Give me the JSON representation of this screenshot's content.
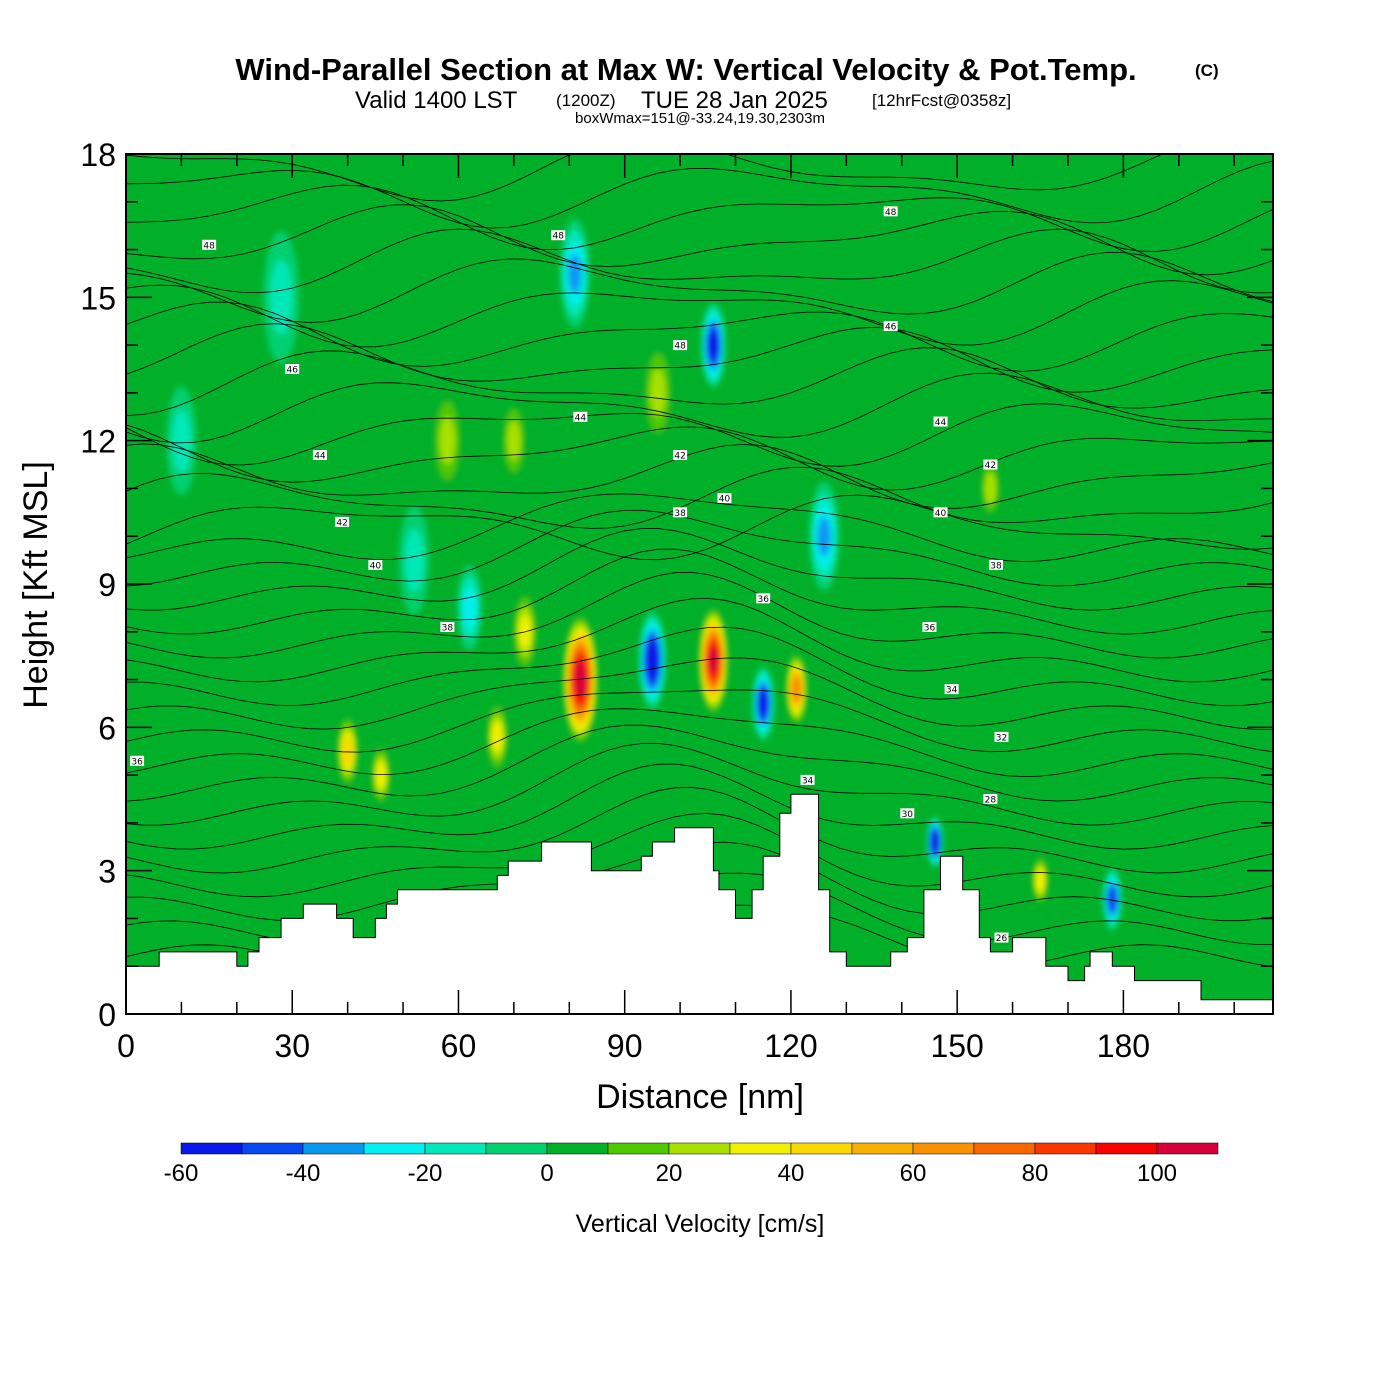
{
  "header": {
    "title": "Wind-Parallel Section at Max W: Vertical Velocity & Pot.Temp.",
    "copyright": "(C)",
    "valid_prefix": "Valid 1400 LST",
    "valid_utc": "(1200Z)",
    "valid_date": "TUE 28 Jan 2025",
    "forecast": "[12hrFcst@0358z]",
    "boxwmax": "boxWmax=151@-33.24,19.30,2303m"
  },
  "chart_data": {
    "type": "heatmap",
    "title": "Wind-Parallel Section at Max W: Vertical Velocity & Pot.Temp.",
    "xlabel": "Distance [nm]",
    "ylabel": "Height [Kft MSL]",
    "xlim": [
      0,
      207
    ],
    "ylim": [
      0,
      18
    ],
    "xticks": [
      0,
      30,
      60,
      90,
      120,
      150,
      180
    ],
    "yticks": [
      0,
      3,
      6,
      9,
      12,
      15,
      18
    ],
    "terrain": {
      "x": [
        0,
        6,
        6,
        20,
        20,
        22,
        22,
        24,
        24,
        28,
        28,
        32,
        32,
        36,
        36,
        38,
        38,
        41,
        41,
        45,
        45,
        47,
        47,
        49,
        49,
        62,
        62,
        64,
        64,
        67,
        67,
        69,
        69,
        75,
        75,
        78,
        78,
        84,
        84,
        90,
        90,
        93,
        93,
        95,
        95,
        99,
        99,
        104,
        104,
        106,
        106,
        107,
        107,
        110,
        110,
        113,
        113,
        115,
        115,
        118,
        118,
        120,
        120,
        125,
        125,
        127,
        127,
        130,
        130,
        138,
        138,
        141,
        141,
        144,
        144,
        147,
        147,
        151,
        151,
        154,
        154,
        156,
        156,
        160,
        160,
        166,
        166,
        170,
        170,
        173,
        173,
        174,
        174,
        178,
        178,
        182,
        182,
        185,
        185,
        194,
        194,
        207
      ],
      "height_kft": [
        1.0,
        1.0,
        1.3,
        1.3,
        1.0,
        1.0,
        1.3,
        1.3,
        1.6,
        1.6,
        2.0,
        2.0,
        2.3,
        2.3,
        2.3,
        2.3,
        2.0,
        2.0,
        1.6,
        1.6,
        2.0,
        2.0,
        2.3,
        2.3,
        2.6,
        2.6,
        2.6,
        2.6,
        2.6,
        2.6,
        2.9,
        2.9,
        3.2,
        3.2,
        3.6,
        3.6,
        3.6,
        3.6,
        3.0,
        3.0,
        3.0,
        3.0,
        3.3,
        3.3,
        3.6,
        3.6,
        3.9,
        3.9,
        3.9,
        3.9,
        3.0,
        3.0,
        2.6,
        2.6,
        2.0,
        2.0,
        2.6,
        2.6,
        3.3,
        3.3,
        4.2,
        4.2,
        4.6,
        4.6,
        2.6,
        2.6,
        1.3,
        1.3,
        1.0,
        1.0,
        1.3,
        1.3,
        1.6,
        1.6,
        2.6,
        2.6,
        3.3,
        3.3,
        2.6,
        2.6,
        1.6,
        1.6,
        1.3,
        1.3,
        1.6,
        1.6,
        1.0,
        1.0,
        0.7,
        0.7,
        1.0,
        1.0,
        1.3,
        1.3,
        1.0,
        1.0,
        0.7,
        0.7,
        0.7,
        0.7,
        0.3,
        0.3
      ]
    },
    "vertical_velocity_cells": [
      {
        "x": 10,
        "y": 12,
        "w": 4,
        "value": -5
      },
      {
        "x": 28,
        "y": 15,
        "w": 5,
        "value": -5
      },
      {
        "x": 33,
        "y": 8.5,
        "w": 4,
        "value": 0
      },
      {
        "x": 40,
        "y": 5.5,
        "w": 2.5,
        "value": 40
      },
      {
        "x": 46,
        "y": 5,
        "w": 2,
        "value": 25
      },
      {
        "x": 52,
        "y": 9.5,
        "w": 4,
        "value": -5
      },
      {
        "x": 58,
        "y": 12,
        "w": 4,
        "value": 15
      },
      {
        "x": 62,
        "y": 8.5,
        "w": 3,
        "value": -20
      },
      {
        "x": 67,
        "y": 5.8,
        "w": 2.5,
        "value": 25
      },
      {
        "x": 70,
        "y": 12,
        "w": 3,
        "value": 20
      },
      {
        "x": 72,
        "y": 8,
        "w": 3,
        "value": 30
      },
      {
        "x": 82,
        "y": 7,
        "w": 5,
        "value": 110
      },
      {
        "x": 81,
        "y": 15.5,
        "w": 4,
        "value": -25
      },
      {
        "x": 95,
        "y": 7.4,
        "w": 3.5,
        "value": -60
      },
      {
        "x": 96,
        "y": 13,
        "w": 4,
        "value": 15
      },
      {
        "x": 106,
        "y": 7.4,
        "w": 4,
        "value": 100
      },
      {
        "x": 106,
        "y": 14,
        "w": 3,
        "value": -50
      },
      {
        "x": 115,
        "y": 6.5,
        "w": 2.5,
        "value": -45
      },
      {
        "x": 121,
        "y": 6.8,
        "w": 2.5,
        "value": 55
      },
      {
        "x": 126,
        "y": 10,
        "w": 4,
        "value": -25
      },
      {
        "x": 140,
        "y": 9,
        "w": 5,
        "value": 0
      },
      {
        "x": 146,
        "y": 3.6,
        "w": 1.5,
        "value": -45
      },
      {
        "x": 156,
        "y": 11,
        "w": 2,
        "value": 20
      },
      {
        "x": 165,
        "y": 2.8,
        "w": 1.5,
        "value": 30
      },
      {
        "x": 178,
        "y": 2.4,
        "w": 2,
        "value": -35
      },
      {
        "x": 190,
        "y": 14,
        "w": 6,
        "value": 0
      }
    ],
    "isentrope_labels_k": [
      {
        "x": 15,
        "y": 16.1,
        "value": "48"
      },
      {
        "x": 78,
        "y": 16.3,
        "value": "48"
      },
      {
        "x": 138,
        "y": 16.8,
        "value": "48"
      },
      {
        "x": 100,
        "y": 14,
        "value": "48"
      },
      {
        "x": 30,
        "y": 13.5,
        "value": "46"
      },
      {
        "x": 138,
        "y": 14.4,
        "value": "46"
      },
      {
        "x": 82,
        "y": 12.5,
        "value": "44"
      },
      {
        "x": 147,
        "y": 12.4,
        "value": "44"
      },
      {
        "x": 35,
        "y": 11.7,
        "value": "44"
      },
      {
        "x": 100,
        "y": 11.7,
        "value": "42"
      },
      {
        "x": 156,
        "y": 11.5,
        "value": "42"
      },
      {
        "x": 39,
        "y": 10.3,
        "value": "42"
      },
      {
        "x": 108,
        "y": 10.8,
        "value": "40"
      },
      {
        "x": 147,
        "y": 10.5,
        "value": "40"
      },
      {
        "x": 45,
        "y": 9.4,
        "value": "40"
      },
      {
        "x": 100,
        "y": 10.5,
        "value": "38"
      },
      {
        "x": 157,
        "y": 9.4,
        "value": "38"
      },
      {
        "x": 58,
        "y": 8.1,
        "value": "38"
      },
      {
        "x": 115,
        "y": 8.7,
        "value": "36"
      },
      {
        "x": 145,
        "y": 8.1,
        "value": "36"
      },
      {
        "x": 149,
        "y": 6.8,
        "value": "34"
      },
      {
        "x": 123,
        "y": 4.9,
        "value": "34"
      },
      {
        "x": 158,
        "y": 5.8,
        "value": "32"
      },
      {
        "x": 141,
        "y": 4.2,
        "value": "30"
      },
      {
        "x": 156,
        "y": 4.5,
        "value": "28"
      },
      {
        "x": 2,
        "y": 5.3,
        "value": "36"
      },
      {
        "x": 158,
        "y": 1.6,
        "value": "26"
      }
    ],
    "colorbar": {
      "label": "Vertical Velocity [cm/s]",
      "bins": [
        -60,
        -50,
        -40,
        -30,
        -20,
        -10,
        0,
        10,
        20,
        30,
        40,
        50,
        60,
        70,
        80,
        90,
        100,
        110
      ],
      "colors": [
        "#0818e8",
        "#0848f0",
        "#0898f0",
        "#00f0f0",
        "#00e8b8",
        "#00d070",
        "#00b028",
        "#50c800",
        "#a8e000",
        "#f0f000",
        "#f8d800",
        "#f8b000",
        "#f89000",
        "#f86800",
        "#f83800",
        "#f80000",
        "#d80038"
      ],
      "tick_labels": [
        "-60",
        "-40",
        "-20",
        "0",
        "20",
        "40",
        "60",
        "80",
        "100"
      ]
    }
  }
}
